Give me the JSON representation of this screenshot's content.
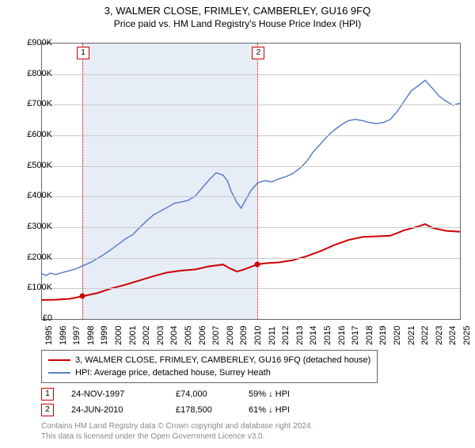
{
  "title": "3, WALMER CLOSE, FRIMLEY, CAMBERLEY, GU16 9FQ",
  "subtitle": "Price paid vs. HM Land Registry's House Price Index (HPI)",
  "chart": {
    "type": "line",
    "background_color": "#ffffff",
    "grid_color": "#cccccc",
    "border_color": "#666666",
    "xlim": [
      1995,
      2025
    ],
    "ylim": [
      0,
      900000
    ],
    "ytick_step": 100000,
    "yticks": [
      "£0",
      "£100K",
      "£200K",
      "£300K",
      "£400K",
      "£500K",
      "£600K",
      "£700K",
      "£800K",
      "£900K"
    ],
    "xticks": [
      "1995",
      "1996",
      "1997",
      "1998",
      "1999",
      "2000",
      "2001",
      "2002",
      "2003",
      "2004",
      "2005",
      "2006",
      "2007",
      "2008",
      "2009",
      "2010",
      "2011",
      "2012",
      "2013",
      "2014",
      "2015",
      "2016",
      "2017",
      "2018",
      "2019",
      "2020",
      "2021",
      "2022",
      "2023",
      "2024",
      "2025"
    ],
    "band_color": "#e6edf7",
    "vline_color": "#cc0000",
    "axis_fontsize": 11,
    "title_fontsize": 13,
    "subtitle_fontsize": 12,
    "series": [
      {
        "name": "red",
        "label": "3, WALMER CLOSE, FRIMLEY, CAMBERLEY, GU16 9FQ (detached house)",
        "color": "#cc0000",
        "line_width": 2,
        "data": [
          [
            1995.0,
            62000
          ],
          [
            1996.0,
            63000
          ],
          [
            1997.0,
            66000
          ],
          [
            1997.9,
            74000
          ],
          [
            1999.0,
            85000
          ],
          [
            2000.0,
            100000
          ],
          [
            2001.0,
            112000
          ],
          [
            2002.0,
            126000
          ],
          [
            2003.0,
            140000
          ],
          [
            2004.0,
            152000
          ],
          [
            2005.0,
            158000
          ],
          [
            2006.0,
            162000
          ],
          [
            2007.0,
            172000
          ],
          [
            2008.0,
            178000
          ],
          [
            2008.5,
            165000
          ],
          [
            2009.0,
            155000
          ],
          [
            2009.5,
            162000
          ],
          [
            2010.48,
            178500
          ],
          [
            2011.0,
            182000
          ],
          [
            2012.0,
            185000
          ],
          [
            2013.0,
            192000
          ],
          [
            2014.0,
            205000
          ],
          [
            2015.0,
            222000
          ],
          [
            2016.0,
            242000
          ],
          [
            2017.0,
            258000
          ],
          [
            2018.0,
            268000
          ],
          [
            2019.0,
            270000
          ],
          [
            2020.0,
            272000
          ],
          [
            2021.0,
            290000
          ],
          [
            2022.0,
            302000
          ],
          [
            2022.5,
            310000
          ],
          [
            2023.0,
            298000
          ],
          [
            2024.0,
            288000
          ],
          [
            2025.0,
            285000
          ]
        ]
      },
      {
        "name": "blue",
        "label": "HPI: Average price, detached house, Surrey Heath",
        "color": "#5b7fc7",
        "line_width": 1.5,
        "data": [
          [
            1995.0,
            148000
          ],
          [
            1995.3,
            142000
          ],
          [
            1995.6,
            150000
          ],
          [
            1996.0,
            145000
          ],
          [
            1996.5,
            152000
          ],
          [
            1997.0,
            158000
          ],
          [
            1997.5,
            165000
          ],
          [
            1998.0,
            175000
          ],
          [
            1998.5,
            185000
          ],
          [
            1999.0,
            198000
          ],
          [
            1999.5,
            212000
          ],
          [
            2000.0,
            228000
          ],
          [
            2000.5,
            245000
          ],
          [
            2001.0,
            262000
          ],
          [
            2001.5,
            275000
          ],
          [
            2002.0,
            298000
          ],
          [
            2002.5,
            320000
          ],
          [
            2003.0,
            340000
          ],
          [
            2003.5,
            352000
          ],
          [
            2004.0,
            365000
          ],
          [
            2004.5,
            378000
          ],
          [
            2005.0,
            382000
          ],
          [
            2005.5,
            388000
          ],
          [
            2006.0,
            402000
          ],
          [
            2006.5,
            428000
          ],
          [
            2007.0,
            455000
          ],
          [
            2007.5,
            478000
          ],
          [
            2008.0,
            470000
          ],
          [
            2008.3,
            452000
          ],
          [
            2008.6,
            415000
          ],
          [
            2009.0,
            380000
          ],
          [
            2009.3,
            362000
          ],
          [
            2009.6,
            388000
          ],
          [
            2010.0,
            420000
          ],
          [
            2010.5,
            445000
          ],
          [
            2011.0,
            452000
          ],
          [
            2011.5,
            448000
          ],
          [
            2012.0,
            458000
          ],
          [
            2012.5,
            465000
          ],
          [
            2013.0,
            475000
          ],
          [
            2013.5,
            492000
          ],
          [
            2014.0,
            515000
          ],
          [
            2014.5,
            548000
          ],
          [
            2015.0,
            572000
          ],
          [
            2015.5,
            598000
          ],
          [
            2016.0,
            618000
          ],
          [
            2016.5,
            635000
          ],
          [
            2017.0,
            648000
          ],
          [
            2017.5,
            652000
          ],
          [
            2018.0,
            648000
          ],
          [
            2018.5,
            642000
          ],
          [
            2019.0,
            638000
          ],
          [
            2019.5,
            642000
          ],
          [
            2020.0,
            652000
          ],
          [
            2020.5,
            678000
          ],
          [
            2021.0,
            712000
          ],
          [
            2021.5,
            745000
          ],
          [
            2022.0,
            762000
          ],
          [
            2022.5,
            780000
          ],
          [
            2023.0,
            755000
          ],
          [
            2023.5,
            728000
          ],
          [
            2024.0,
            712000
          ],
          [
            2024.5,
            698000
          ],
          [
            2025.0,
            705000
          ]
        ]
      }
    ],
    "sales_band": {
      "start": 1997.9,
      "end": 2010.48
    },
    "sale_markers": [
      {
        "n": "1",
        "x": 1997.9,
        "y": 74000
      },
      {
        "n": "2",
        "x": 2010.48,
        "y": 178500
      }
    ]
  },
  "legend": {
    "items": [
      {
        "color": "#cc0000",
        "label": "3, WALMER CLOSE, FRIMLEY, CAMBERLEY, GU16 9FQ (detached house)"
      },
      {
        "color": "#5b7fc7",
        "label": "HPI: Average price, detached house, Surrey Heath"
      }
    ]
  },
  "sales_table": [
    {
      "n": "1",
      "date": "24-NOV-1997",
      "price": "£74,000",
      "delta": "59% ↓ HPI"
    },
    {
      "n": "2",
      "date": "24-JUN-2010",
      "price": "£178,500",
      "delta": "61% ↓ HPI"
    }
  ],
  "attribution": {
    "line1": "Contains HM Land Registry data © Crown copyright and database right 2024.",
    "line2": "This data is licensed under the Open Government Licence v3.0."
  }
}
